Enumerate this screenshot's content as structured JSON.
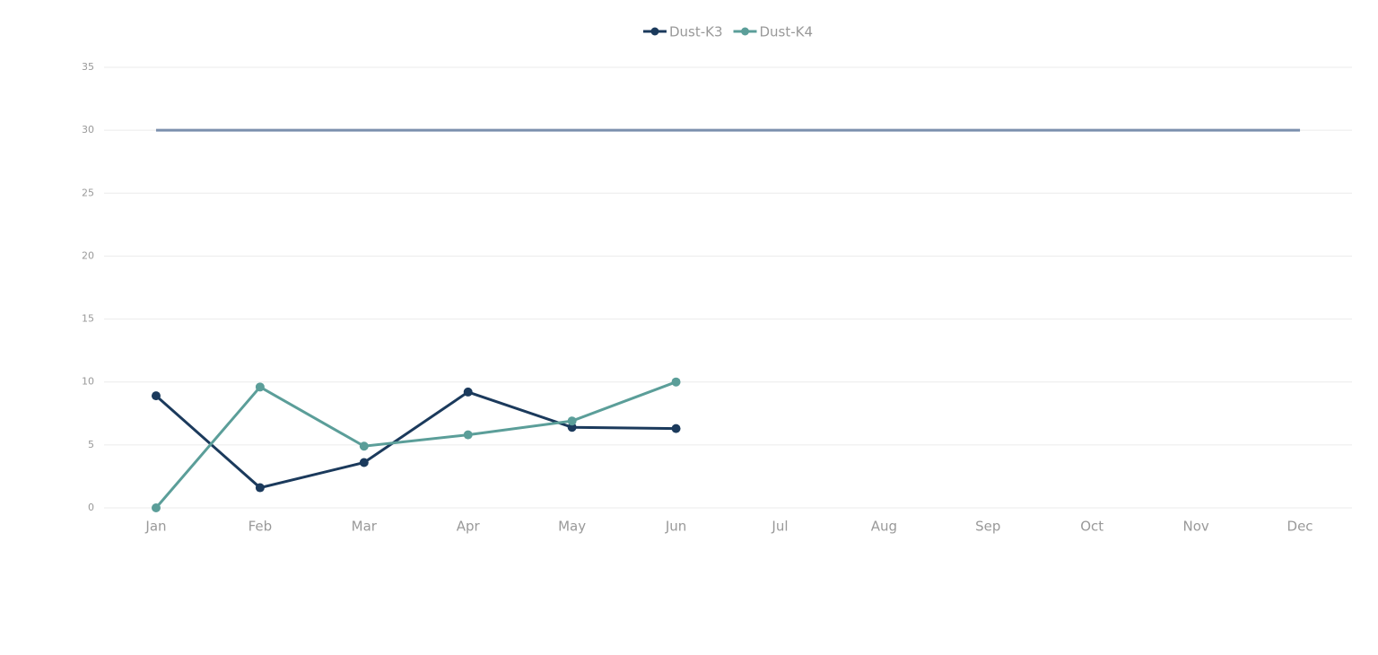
{
  "chart_data": {
    "type": "line",
    "categories": [
      "Jan",
      "Feb",
      "Mar",
      "Apr",
      "May",
      "Jun",
      "Jul",
      "Aug",
      "Sep",
      "Oct",
      "Nov",
      "Dec"
    ],
    "series": [
      {
        "name": "Dust-K3",
        "color": "#1b3a5c",
        "values": [
          8.9,
          1.6,
          3.6,
          9.2,
          6.4,
          6.3,
          null,
          null,
          null,
          null,
          null,
          null
        ]
      },
      {
        "name": "Dust-K4",
        "color": "#5b9e99",
        "values": [
          0,
          9.6,
          4.9,
          5.8,
          6.9,
          10.0,
          null,
          null,
          null,
          null,
          null,
          null
        ]
      }
    ],
    "reference_line": {
      "value": 30,
      "color": "#7b8fad"
    },
    "ylim": [
      0,
      35
    ],
    "yticks": [
      0,
      5,
      10,
      15,
      20,
      25,
      30,
      35
    ],
    "grid": true,
    "legend": "top"
  }
}
